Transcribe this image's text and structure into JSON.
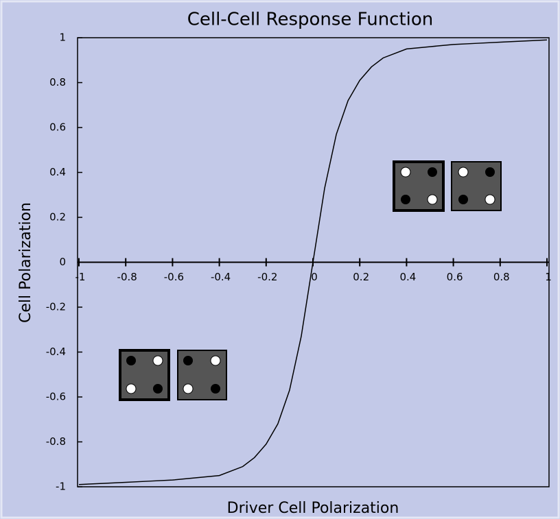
{
  "chart_data": {
    "type": "line",
    "title": "Cell-Cell Response Function",
    "xlabel": "Driver Cell Polarization",
    "ylabel": "Cell Polarization",
    "x": [
      -1,
      -0.9,
      -0.8,
      -0.7,
      -0.6,
      -0.5,
      -0.4,
      -0.35,
      -0.3,
      -0.25,
      -0.2,
      -0.15,
      -0.1,
      -0.05,
      0,
      0.05,
      0.1,
      0.15,
      0.2,
      0.25,
      0.3,
      0.35,
      0.4,
      0.5,
      0.6,
      0.7,
      0.8,
      0.9,
      1
    ],
    "series": [
      {
        "color": "#000000",
        "values": [
          -0.99,
          -0.985,
          -0.98,
          -0.975,
          -0.97,
          -0.96,
          -0.95,
          -0.93,
          -0.91,
          -0.87,
          -0.81,
          -0.72,
          -0.57,
          -0.33,
          0,
          0.33,
          0.57,
          0.72,
          0.81,
          0.87,
          0.91,
          0.93,
          0.95,
          0.96,
          0.97,
          0.975,
          0.98,
          0.985,
          0.99
        ]
      }
    ],
    "xlim": [
      -1,
      1
    ],
    "ylim": [
      -1,
      1
    ],
    "xticks": [
      -1,
      -0.8,
      -0.6,
      -0.4,
      -0.2,
      0,
      0.2,
      0.4,
      0.6,
      0.8,
      1
    ],
    "yticks": [
      -1,
      -0.8,
      -0.6,
      -0.4,
      -0.2,
      0,
      0.2,
      0.4,
      0.6,
      0.8,
      1
    ]
  }
}
